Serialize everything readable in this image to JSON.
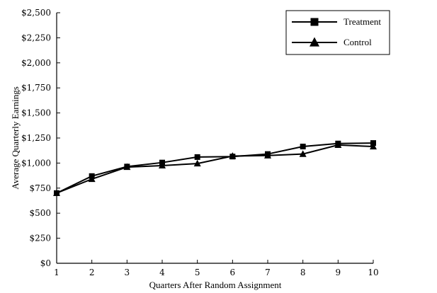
{
  "chart_data": {
    "type": "line",
    "title": "",
    "xlabel": "Quarters After Random Assignment",
    "ylabel": "Average Quarterly Earnings",
    "x": [
      1,
      2,
      3,
      4,
      5,
      6,
      7,
      8,
      9,
      10
    ],
    "xlim": [
      1,
      10
    ],
    "ylim": [
      0,
      2500
    ],
    "yticks": [
      0,
      250,
      500,
      750,
      1000,
      1250,
      1500,
      1750,
      2000,
      2250,
      2500
    ],
    "ytick_labels": [
      "$0",
      "$250",
      "$500",
      "$750",
      "$1,000",
      "$1,250",
      "$1,500",
      "$1,750",
      "$2,000",
      "$2,250",
      "$2,500"
    ],
    "xtick_labels": [
      "1",
      "2",
      "3",
      "4",
      "5",
      "6",
      "7",
      "8",
      "9",
      "10"
    ],
    "grid": false,
    "legend_position": "top-right",
    "series": [
      {
        "name": "Treatment",
        "marker": "square",
        "color": "#000000",
        "values": [
          700,
          870,
          965,
          1005,
          1060,
          1065,
          1090,
          1165,
          1195,
          1200
        ]
      },
      {
        "name": "Control",
        "marker": "triangle",
        "color": "#000000",
        "values": [
          700,
          840,
          960,
          975,
          995,
          1070,
          1075,
          1090,
          1180,
          1165
        ]
      }
    ]
  }
}
